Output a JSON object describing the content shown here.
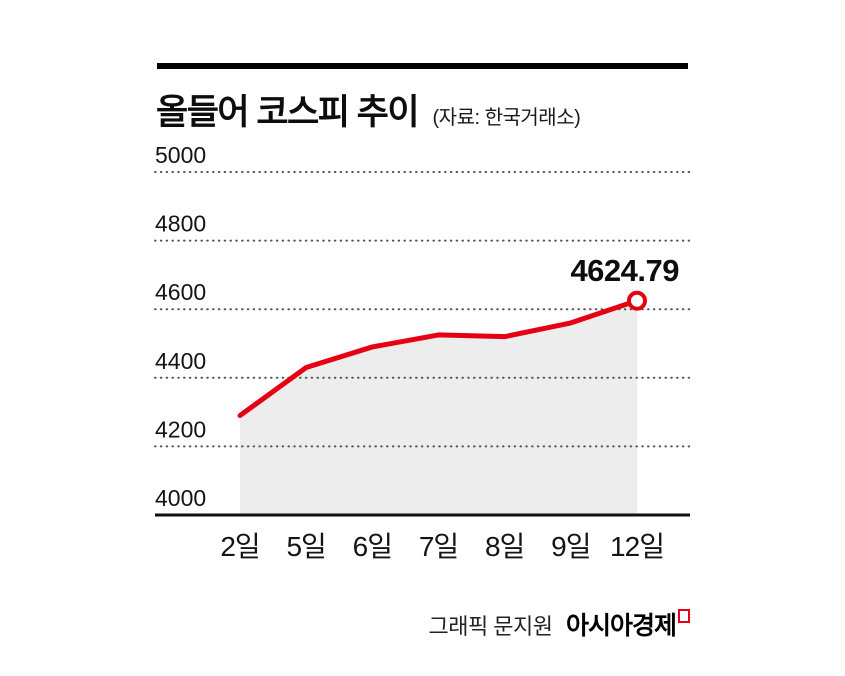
{
  "header": {
    "title": "올들어 코스피 추이",
    "source": "(자료: 한국거래소)"
  },
  "chart_data": {
    "type": "line",
    "title": "올들어 코스피 추이",
    "categories": [
      "2일",
      "5일",
      "6일",
      "7일",
      "8일",
      "9일",
      "12일"
    ],
    "values": [
      4290,
      4430,
      4490,
      4525,
      4520,
      4560,
      4624.79
    ],
    "xlabel": "",
    "ylabel": "",
    "ylim": [
      4000,
      5000
    ],
    "yticks": [
      5000,
      4800,
      4600,
      4400,
      4200,
      4000
    ],
    "grid": "dotted",
    "legend": "none",
    "annotation": "4624.79",
    "line_color": "#e60013",
    "area_color": "#ededed",
    "axis_color": "#111111",
    "marker": "open-circle"
  },
  "footer": {
    "credit_regular": "그래픽 문지원",
    "credit_brand": "아시아경제"
  }
}
